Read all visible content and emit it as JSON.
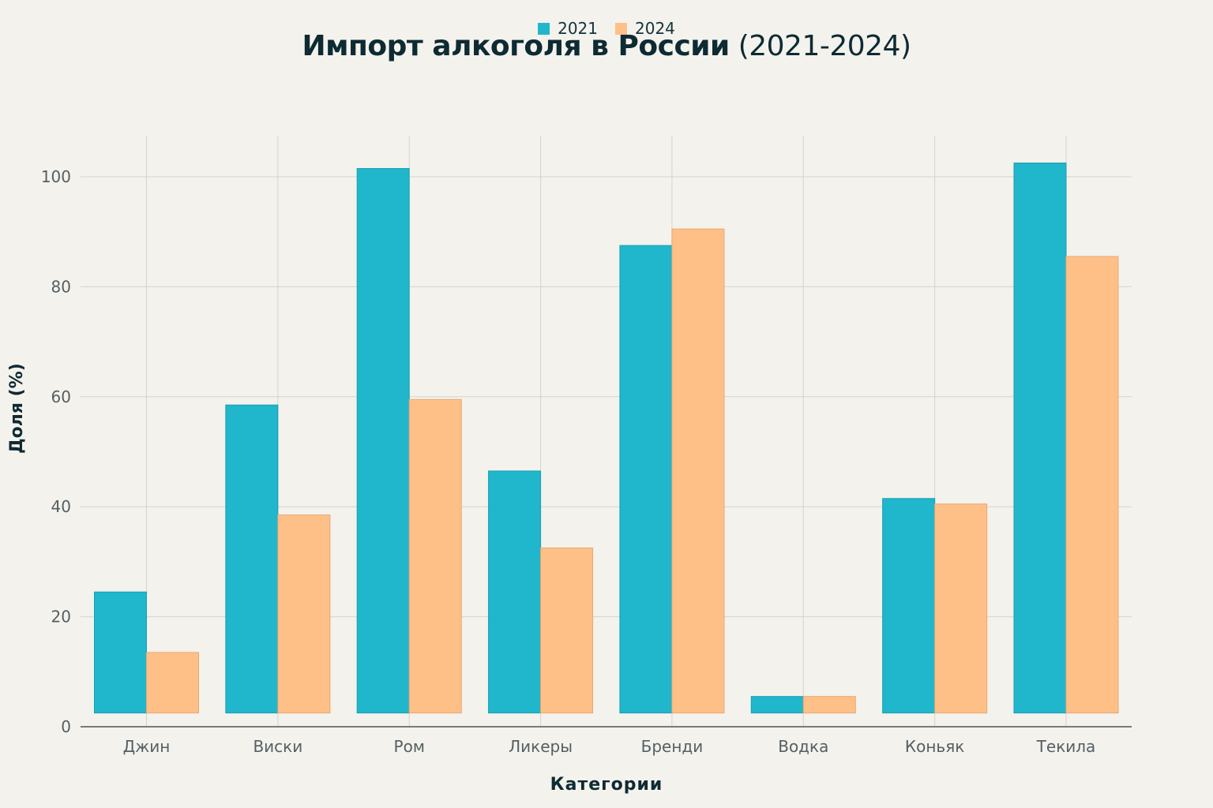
{
  "chart_data": {
    "type": "bar",
    "title": "Импорт алкоголя в России",
    "title_suffix": "(2021-2024)",
    "xlabel": "Категории",
    "ylabel": "Доля (%)",
    "categories": [
      "Джин",
      "Виски",
      "Ром",
      "Ликеры",
      "Бренди",
      "Водка",
      "Коньяк",
      "Текила"
    ],
    "series": [
      {
        "name": "2021",
        "color": "#20b6cc",
        "values": [
          24.5,
          58.5,
          101.5,
          46.5,
          87.5,
          5.5,
          41.5,
          102.5
        ]
      },
      {
        "name": "2024",
        "color": "#ffc088",
        "values": [
          13.5,
          38.5,
          59.5,
          32.5,
          90.5,
          5.5,
          40.5,
          85.5
        ]
      }
    ],
    "bar_base": 2.5,
    "ylim": [
      0,
      107.5
    ],
    "yticks": [
      0,
      20,
      40,
      60,
      80,
      100
    ],
    "grid": true,
    "legend_position": "top-center"
  }
}
